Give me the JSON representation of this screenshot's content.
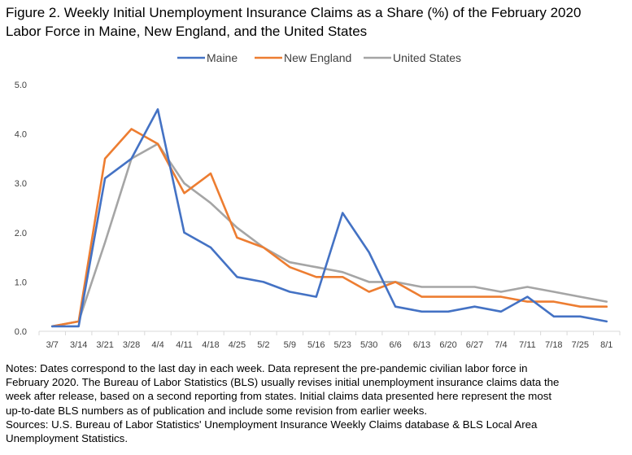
{
  "title": {
    "line1": "Figure 2. Weekly Initial Unemployment Insurance Claims as a Share (%) of the February 2020",
    "line2": "Labor Force in Maine, New England, and the United States"
  },
  "notes": {
    "line1": "Notes: Dates correspond to the last day in each week. Data represent the pre-pandemic civilian labor force in",
    "line2": "February 2020. The Bureau of Labor Statistics (BLS) usually revises initial unemployment insurance claims data the",
    "line3": "week after release, based on a second reporting from states. Initial claims data presented here represent the most",
    "line4": "up-to-date BLS numbers as of publication and include some revision from earlier weeks.",
    "line5": "Sources: U.S. Bureau of Labor Statistics' Unemployment Insurance Weekly Claims database & BLS Local Area",
    "line6": "Unemployment Statistics."
  },
  "chart_data": {
    "type": "line",
    "categories": [
      "3/7",
      "3/14",
      "3/21",
      "3/28",
      "4/4",
      "4/11",
      "4/18",
      "4/25",
      "5/2",
      "5/9",
      "5/16",
      "5/23",
      "5/30",
      "6/6",
      "6/13",
      "6/20",
      "6/27",
      "7/4",
      "7/11",
      "7/18",
      "7/25",
      "8/1"
    ],
    "ylim": [
      0,
      5
    ],
    "yticks": [
      "0.0",
      "1.0",
      "2.0",
      "3.0",
      "4.0",
      "5.0"
    ],
    "ytick_values": [
      0,
      1,
      2,
      3,
      4,
      5
    ],
    "grid": false,
    "legend_position": "top",
    "series": [
      {
        "name": "Maine",
        "color": "#4472C4",
        "values": [
          0.1,
          0.1,
          3.1,
          3.5,
          4.5,
          2.0,
          1.7,
          1.1,
          1.0,
          0.8,
          0.7,
          2.4,
          1.6,
          0.5,
          0.4,
          0.4,
          0.5,
          0.4,
          0.7,
          0.3,
          0.3,
          0.2
        ]
      },
      {
        "name": "New England",
        "color": "#ED7D31",
        "values": [
          0.1,
          0.2,
          3.5,
          4.1,
          3.8,
          2.8,
          3.2,
          1.9,
          1.7,
          1.3,
          1.1,
          1.1,
          0.8,
          1.0,
          0.7,
          0.7,
          0.7,
          0.7,
          0.6,
          0.6,
          0.5,
          0.5
        ]
      },
      {
        "name": "United States",
        "color": "#A5A5A5",
        "values": [
          0.1,
          0.2,
          1.8,
          3.5,
          3.8,
          3.0,
          2.6,
          2.1,
          1.7,
          1.4,
          1.3,
          1.2,
          1.0,
          1.0,
          0.9,
          0.9,
          0.9,
          0.8,
          0.9,
          0.8,
          0.7,
          0.6
        ]
      }
    ]
  }
}
